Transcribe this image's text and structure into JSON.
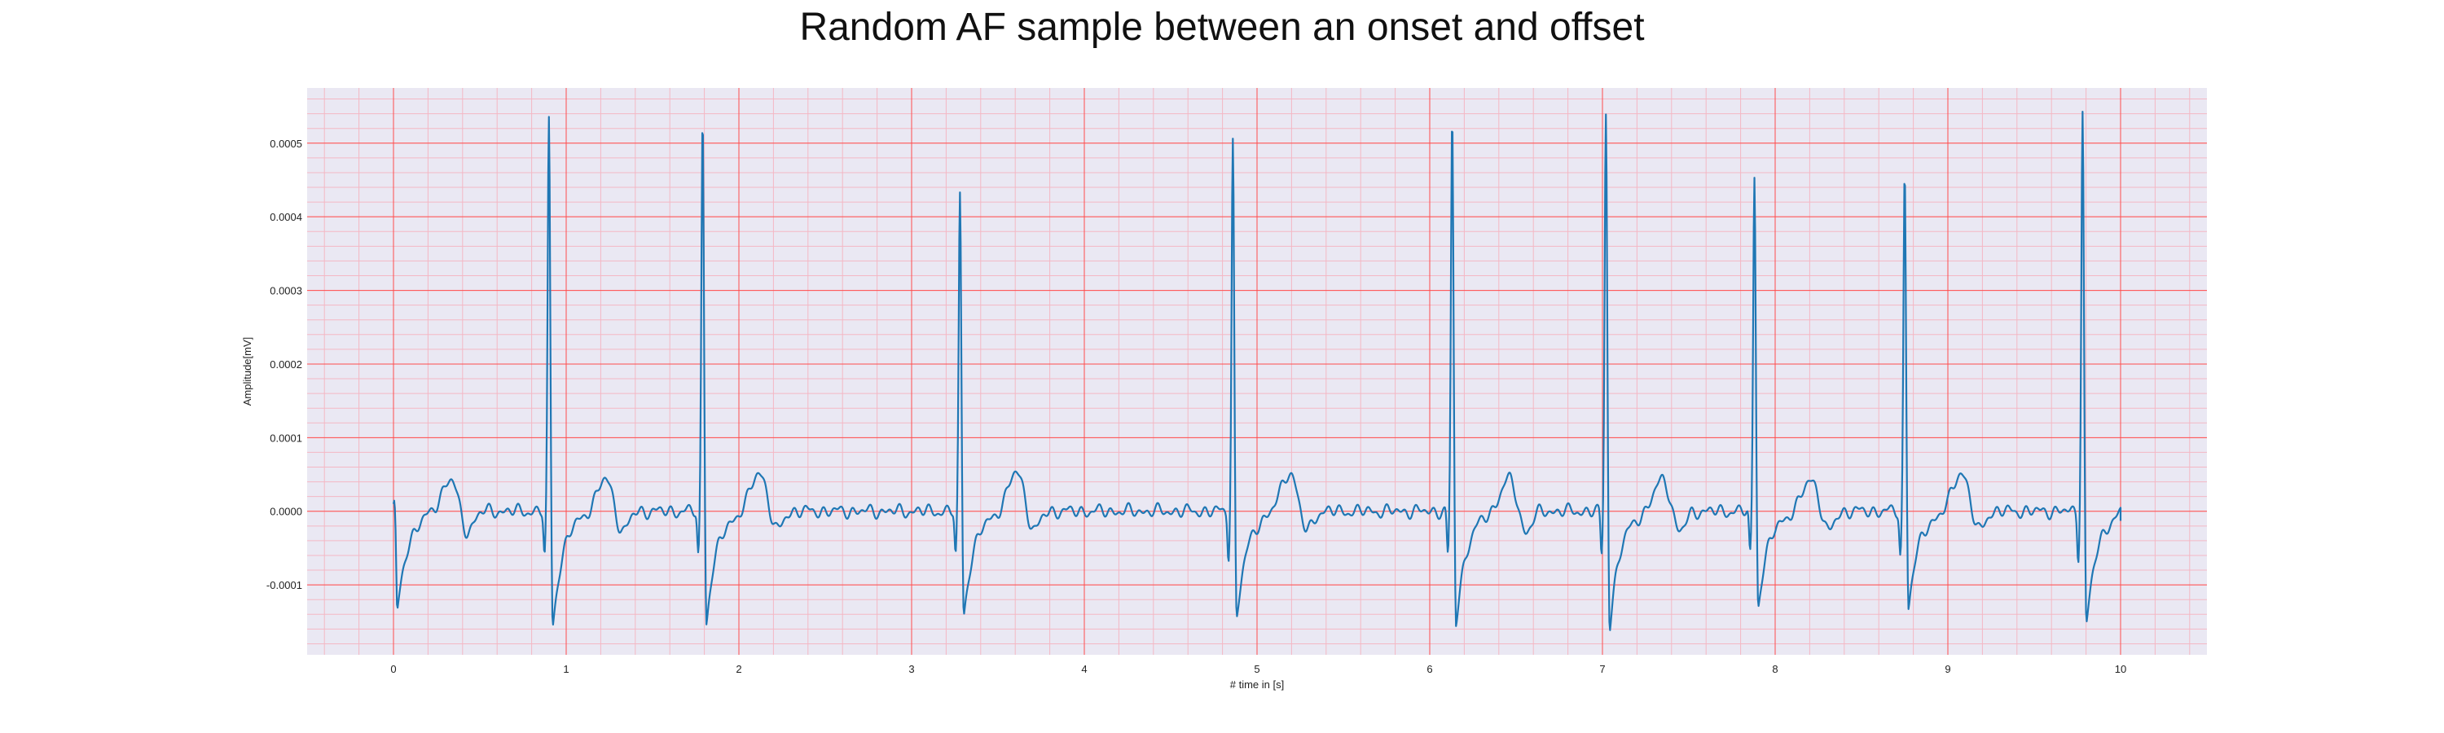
{
  "chart_data": {
    "type": "line",
    "title": "Random AF sample between an onset and offset",
    "xlabel": "# time in [s]",
    "ylabel": "Amplitude[mV]",
    "xlim": [
      -0.5,
      10.5
    ],
    "ylim": [
      -0.000195,
      0.000575
    ],
    "x_ticks": [
      0,
      1,
      2,
      3,
      4,
      5,
      6,
      7,
      8,
      9,
      10
    ],
    "x_tick_labels": [
      "0",
      "1",
      "2",
      "3",
      "4",
      "5",
      "6",
      "7",
      "8",
      "9",
      "10"
    ],
    "y_ticks": [
      -0.0001,
      0.0,
      0.0001,
      0.0002,
      0.0003,
      0.0004,
      0.0005
    ],
    "y_tick_labels": [
      "-0.0001",
      "0.0000",
      "0.0001",
      "0.0002",
      "0.0003",
      "0.0004",
      "0.0005"
    ],
    "grid": true,
    "minor_grid": true,
    "colors": {
      "line": "#1f77b4",
      "plot_bg": "#eae8f3",
      "major_grid": "#ff4d4d",
      "minor_grid": "#f4b7c4"
    },
    "series": [
      {
        "beats": [
          {
            "t": 0.0,
            "r": 1e-05,
            "s": -0.00014
          },
          {
            "t": 0.9,
            "r": 0.00053,
            "s": -0.000158
          },
          {
            "t": 1.79,
            "r": 0.000535,
            "s": -0.000153
          },
          {
            "t": 3.28,
            "r": 0.00043,
            "s": -0.000143
          },
          {
            "t": 4.86,
            "r": 0.000502,
            "s": -0.000148
          },
          {
            "t": 6.13,
            "r": 0.000533,
            "s": -0.000156
          },
          {
            "t": 7.02,
            "r": 0.00054,
            "s": -0.00016
          },
          {
            "t": 7.88,
            "r": 0.000457,
            "s": -0.000131
          },
          {
            "t": 8.75,
            "r": 0.000462,
            "s": -0.000132
          },
          {
            "t": 9.78,
            "r": 0.000542,
            "s": -0.000158
          }
        ],
        "t_end": 10.0,
        "end_value": -1.3e-05
      }
    ]
  }
}
